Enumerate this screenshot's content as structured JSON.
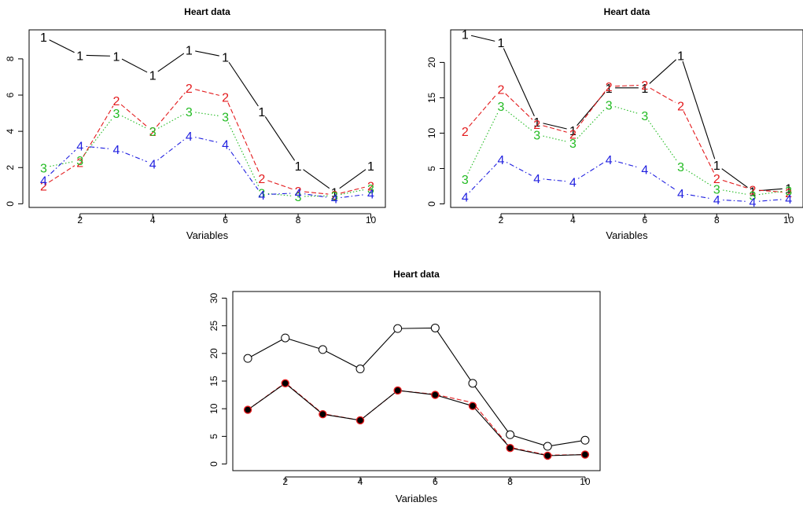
{
  "chart_data": [
    {
      "type": "line",
      "title": "Heart data",
      "xlabel": "Variables",
      "ylabel": "",
      "x": [
        1,
        2,
        3,
        4,
        5,
        6,
        7,
        8,
        9,
        10
      ],
      "xticks": [
        2,
        4,
        6,
        8,
        10
      ],
      "yticks": [
        0,
        2,
        4,
        6,
        8
      ],
      "xlim": [
        0.6,
        10.4
      ],
      "ylim": [
        -0.2,
        9.6
      ],
      "grid": false,
      "markers": "digits",
      "series": [
        {
          "marker": "1",
          "color": "#000000",
          "dash": "solid",
          "values": [
            9.2,
            8.2,
            8.15,
            7.1,
            8.5,
            8.1,
            5.1,
            2.1,
            0.65,
            2.1
          ]
        },
        {
          "marker": "2",
          "color": "#e31a1c",
          "dash": "dashed",
          "values": [
            1.0,
            2.3,
            5.7,
            4.0,
            6.4,
            5.9,
            1.4,
            0.7,
            0.5,
            1.0
          ]
        },
        {
          "marker": "3",
          "color": "#22bb22",
          "dash": "dotted",
          "values": [
            2.0,
            2.4,
            5.0,
            4.0,
            5.1,
            4.8,
            0.6,
            0.4,
            0.45,
            0.85
          ]
        },
        {
          "marker": "4",
          "color": "#1f1fe0",
          "dash": "dotdash",
          "values": [
            1.3,
            3.2,
            3.0,
            2.2,
            3.75,
            3.3,
            0.5,
            0.6,
            0.3,
            0.55
          ]
        }
      ]
    },
    {
      "type": "line",
      "title": "Heart data",
      "xlabel": "Variables",
      "ylabel": "",
      "x": [
        1,
        2,
        3,
        4,
        5,
        6,
        7,
        8,
        9,
        10
      ],
      "xticks": [
        2,
        4,
        6,
        8,
        10
      ],
      "yticks": [
        0,
        5,
        10,
        15,
        20
      ],
      "xlim": [
        0.6,
        10.4
      ],
      "ylim": [
        -0.5,
        24.6
      ],
      "grid": false,
      "markers": "digits",
      "series": [
        {
          "marker": "1",
          "color": "#000000",
          "dash": "solid",
          "values": [
            24.0,
            22.8,
            11.6,
            10.4,
            16.4,
            16.4,
            21.0,
            5.5,
            1.8,
            2.2
          ]
        },
        {
          "marker": "2",
          "color": "#e31a1c",
          "dash": "dashed",
          "values": [
            10.3,
            16.2,
            11.3,
            9.9,
            16.6,
            16.8,
            13.9,
            3.6,
            2.0,
            1.6
          ]
        },
        {
          "marker": "3",
          "color": "#22bb22",
          "dash": "dotted",
          "values": [
            3.5,
            13.8,
            9.8,
            8.6,
            14.0,
            12.5,
            5.3,
            2.1,
            1.2,
            1.9
          ]
        },
        {
          "marker": "4",
          "color": "#1f1fe0",
          "dash": "dotdash",
          "values": [
            1.0,
            6.3,
            3.6,
            3.1,
            6.3,
            4.9,
            1.5,
            0.6,
            0.3,
            0.7
          ]
        }
      ]
    },
    {
      "type": "line",
      "title": "Heart data",
      "xlabel": "Variables",
      "ylabel": "",
      "x": [
        1,
        2,
        3,
        4,
        5,
        6,
        7,
        8,
        9,
        10
      ],
      "xticks": [
        2,
        4,
        6,
        8,
        10
      ],
      "yticks": [
        0,
        5,
        10,
        15,
        20,
        25,
        30
      ],
      "xlim": [
        0.6,
        10.4
      ],
      "ylim": [
        -1.2,
        31.2
      ],
      "grid": false,
      "markers": "circles",
      "series": [
        {
          "marker": "open-circle",
          "color": "#000000",
          "dash": "solid",
          "fill": "#ffffff",
          "values": [
            19.1,
            22.8,
            20.7,
            17.2,
            24.5,
            24.6,
            14.6,
            5.3,
            3.2,
            4.3
          ]
        },
        {
          "marker": "none",
          "color": "#e31a1c",
          "dash": "dashed",
          "values": [
            9.8,
            14.7,
            9.1,
            7.9,
            13.3,
            12.6,
            11.1,
            3.0,
            1.6,
            1.7
          ]
        },
        {
          "marker": "filled-circle",
          "color": "#000000",
          "dash": "solid",
          "fill": "#000000",
          "ring": "#e31a1c",
          "values": [
            9.8,
            14.6,
            9.0,
            7.9,
            13.3,
            12.5,
            10.5,
            2.9,
            1.5,
            1.7
          ]
        }
      ]
    }
  ]
}
